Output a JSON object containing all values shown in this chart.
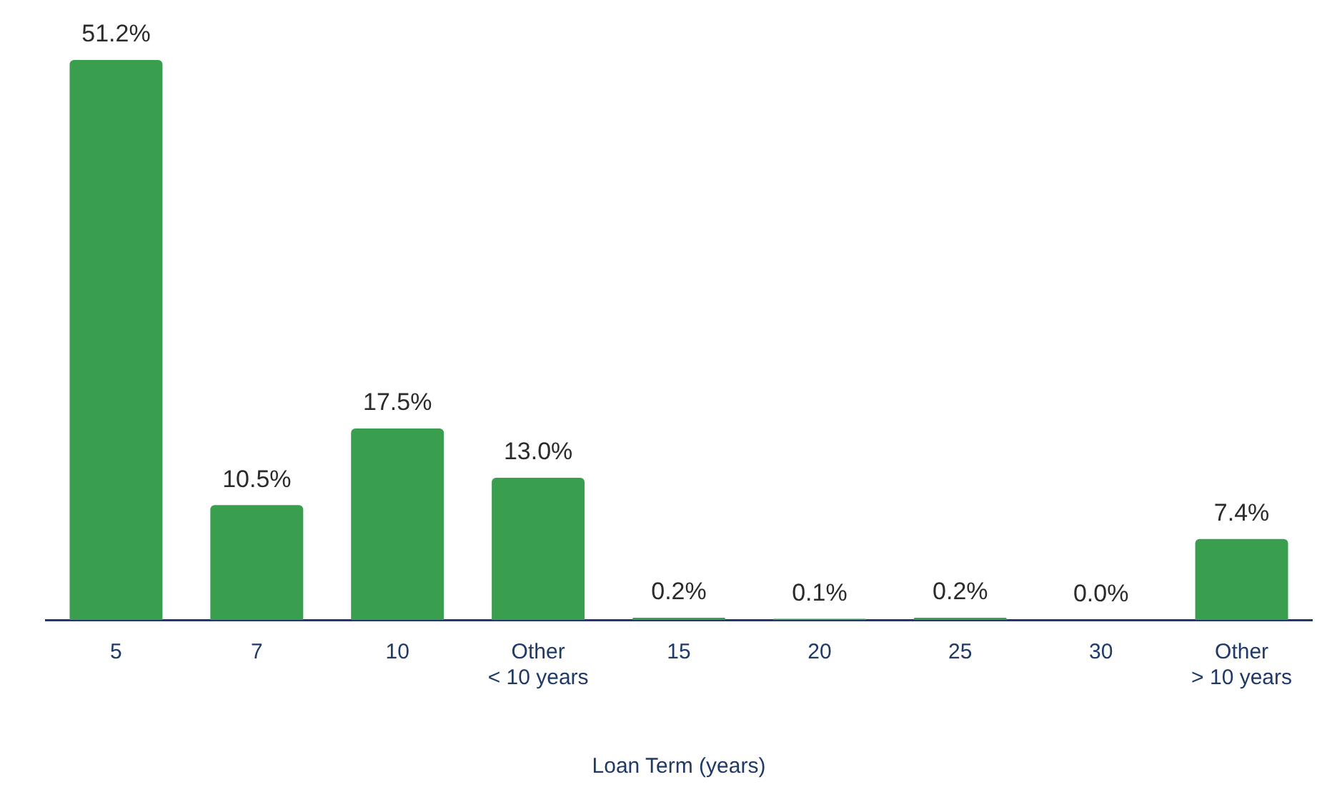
{
  "chart_data": {
    "type": "bar",
    "xlabel": "Loan Term (years)",
    "categories": [
      "5",
      "7",
      "10",
      "Other\n< 10 years",
      "15",
      "20",
      "25",
      "30",
      "Other\n> 10 years"
    ],
    "values": [
      51.2,
      10.5,
      17.5,
      13.0,
      0.2,
      0.1,
      0.2,
      0.0,
      7.4
    ],
    "value_labels": [
      "51.2%",
      "10.5%",
      "17.5%",
      "13.0%",
      "0.2%",
      "0.1%",
      "0.2%",
      "0.0%",
      "7.4%"
    ],
    "color": "#3a9e4f",
    "grid": false,
    "legend": false
  }
}
